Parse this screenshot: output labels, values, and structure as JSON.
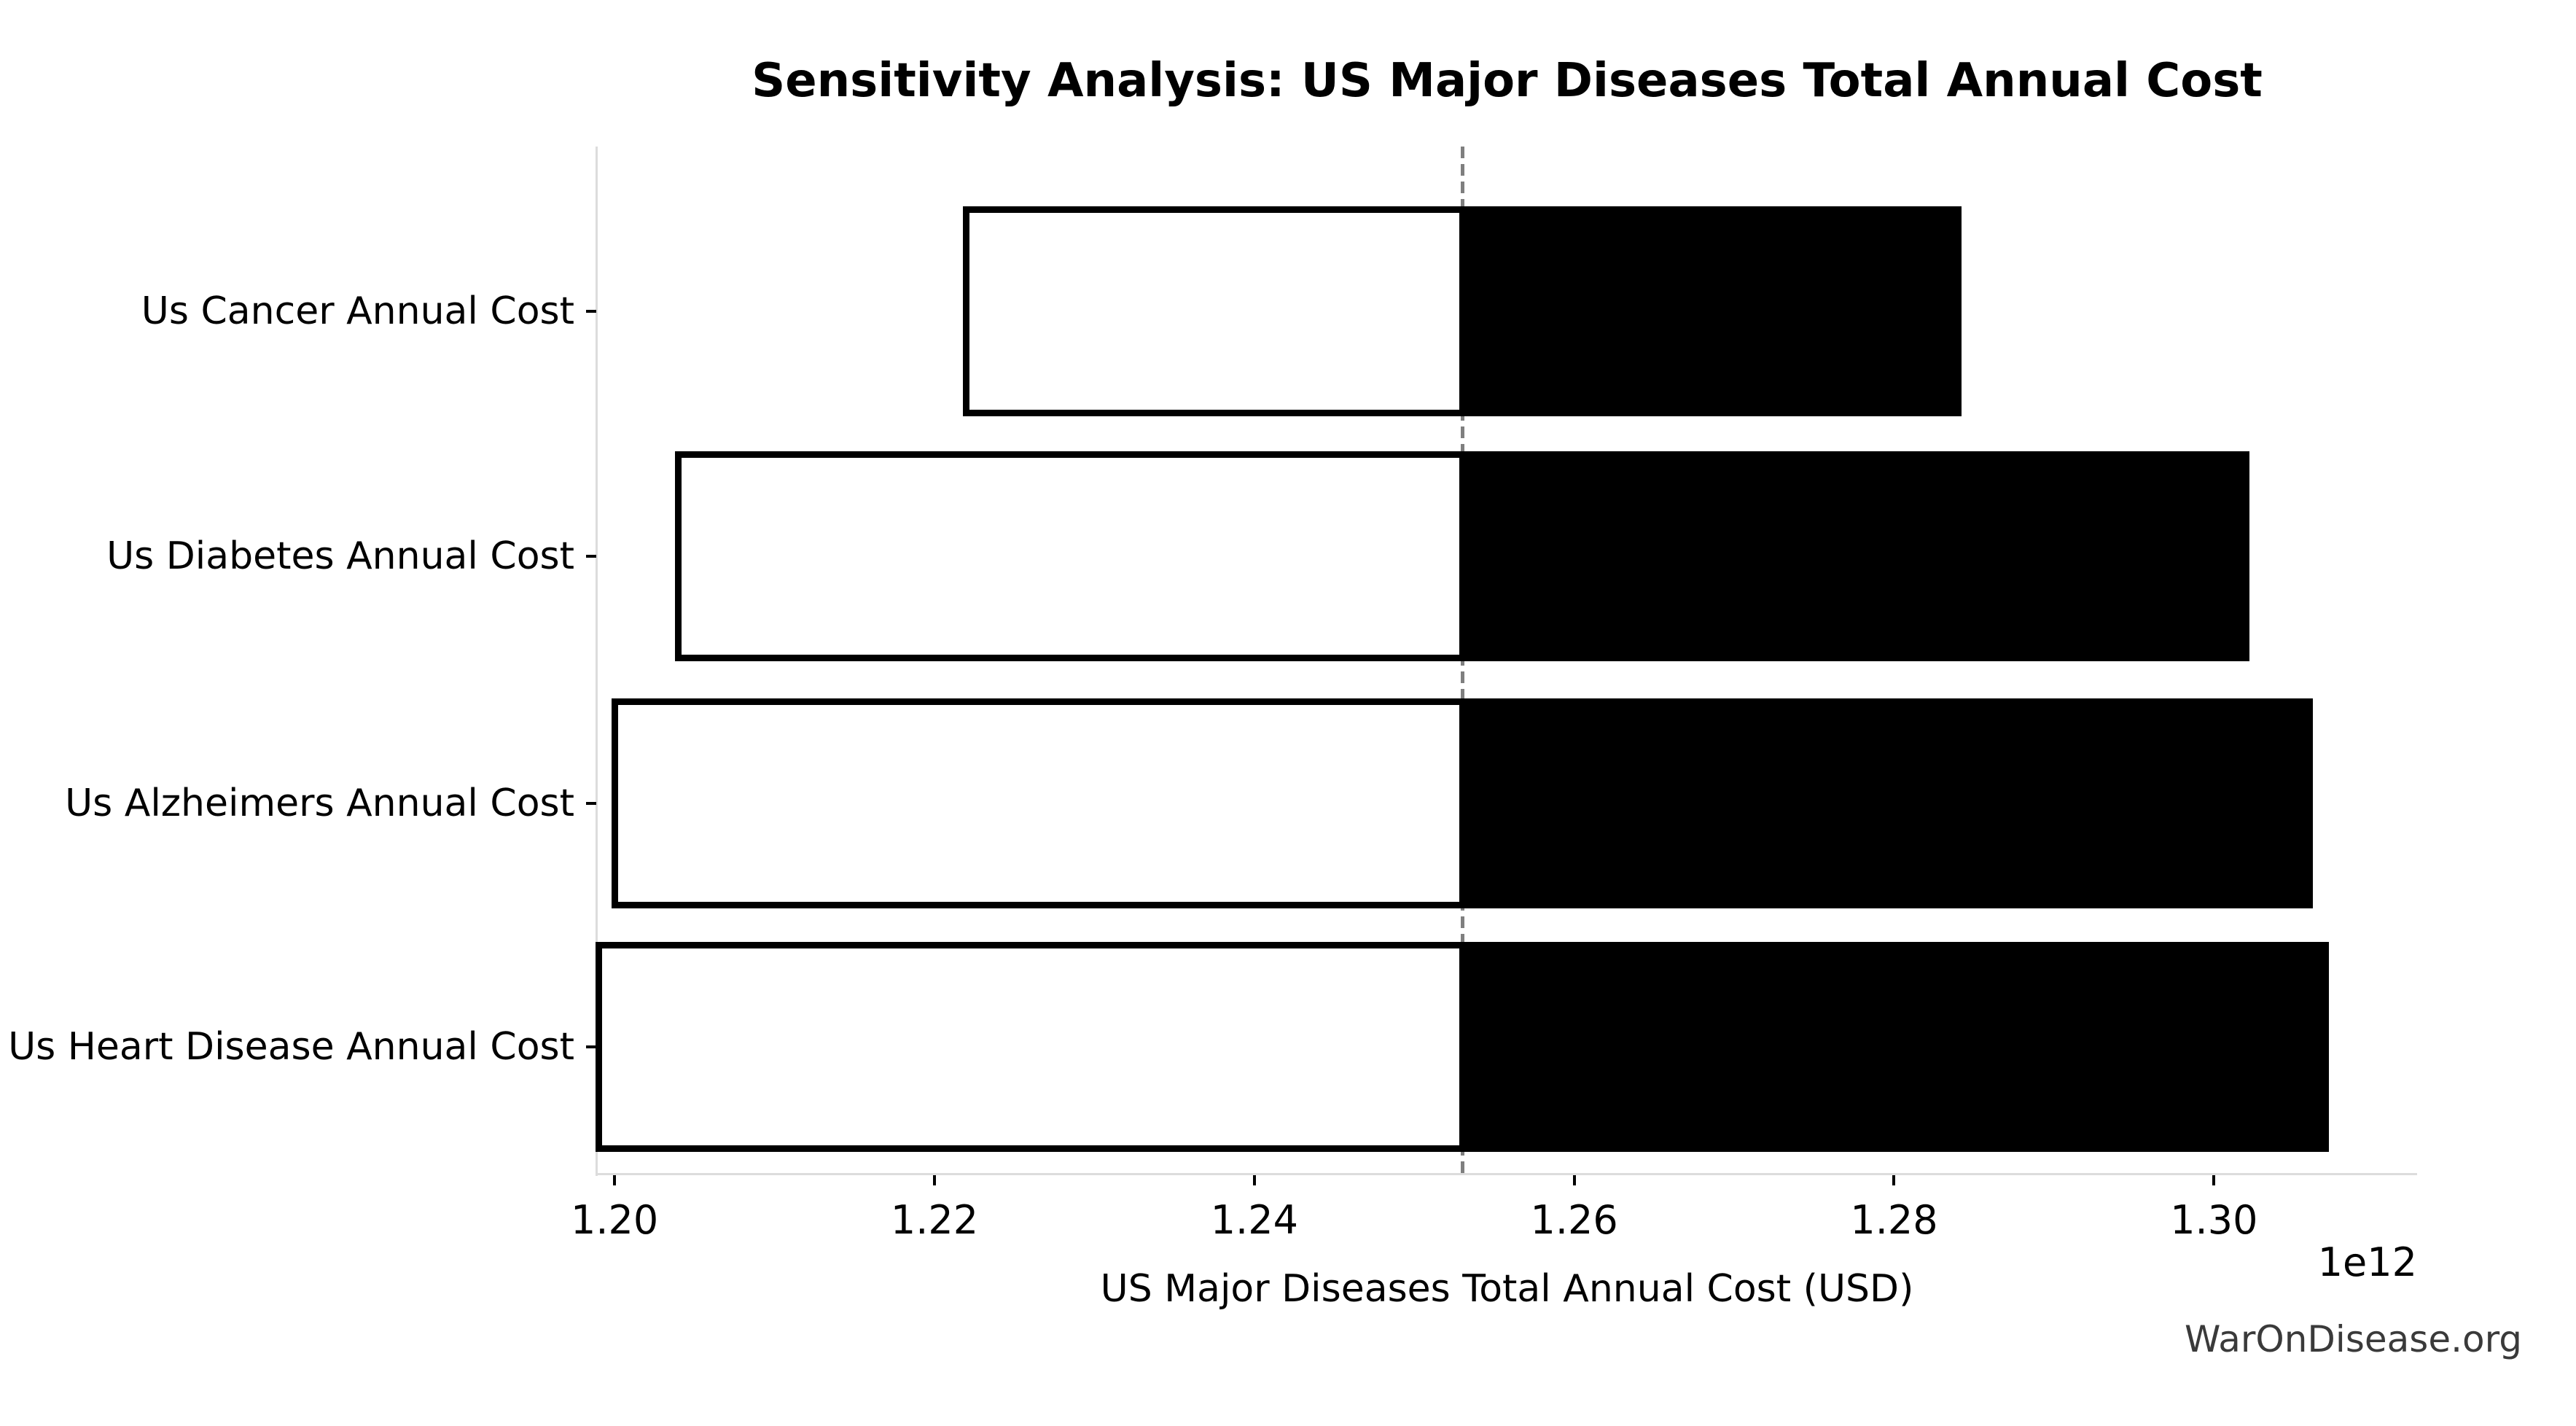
{
  "title": "Sensitivity Analysis: US Major Diseases Total Annual Cost",
  "watermark": "WarOnDisease.org",
  "chart_data": {
    "type": "bar",
    "subtype": "tornado-sensitivity",
    "orientation": "horizontal",
    "title": "Sensitivity Analysis: US Major Diseases Total Annual Cost",
    "xlabel": "US Major Diseases Total Annual Cost (USD)",
    "axis_offset_label": "1e12",
    "values_unit": "USD x 1e12",
    "baseline": 1.253,
    "xlim": [
      1.1989,
      1.3127
    ],
    "x_ticks": [
      1.2,
      1.22,
      1.24,
      1.26,
      1.28,
      1.3
    ],
    "x_tick_labels": [
      "1.20",
      "1.22",
      "1.24",
      "1.26",
      "1.28",
      "1.30"
    ],
    "categories": [
      "Us Cancer Annual Cost",
      "Us Diabetes Annual Cost",
      "Us Alzheimers Annual Cost",
      "Us Heart Disease Annual Cost"
    ],
    "bars": [
      {
        "label": "Us Cancer Annual Cost",
        "low": 1.222,
        "high": 1.284
      },
      {
        "label": "Us Diabetes Annual Cost",
        "low": 1.204,
        "high": 1.302
      },
      {
        "label": "Us Alzheimers Annual Cost",
        "low": 1.2,
        "high": 1.306
      },
      {
        "label": "Us Heart Disease Annual Cost",
        "low": 1.199,
        "high": 1.307
      }
    ],
    "legend": null,
    "grid": false,
    "colors": {
      "low_fill": "#ffffff",
      "high_fill": "#000000",
      "bar_edge": "#000000",
      "baseline_line": "#7f7f7f",
      "spine": "#dcdcdc",
      "tick": "#000000",
      "watermark_text": "#3a3a3a"
    }
  }
}
